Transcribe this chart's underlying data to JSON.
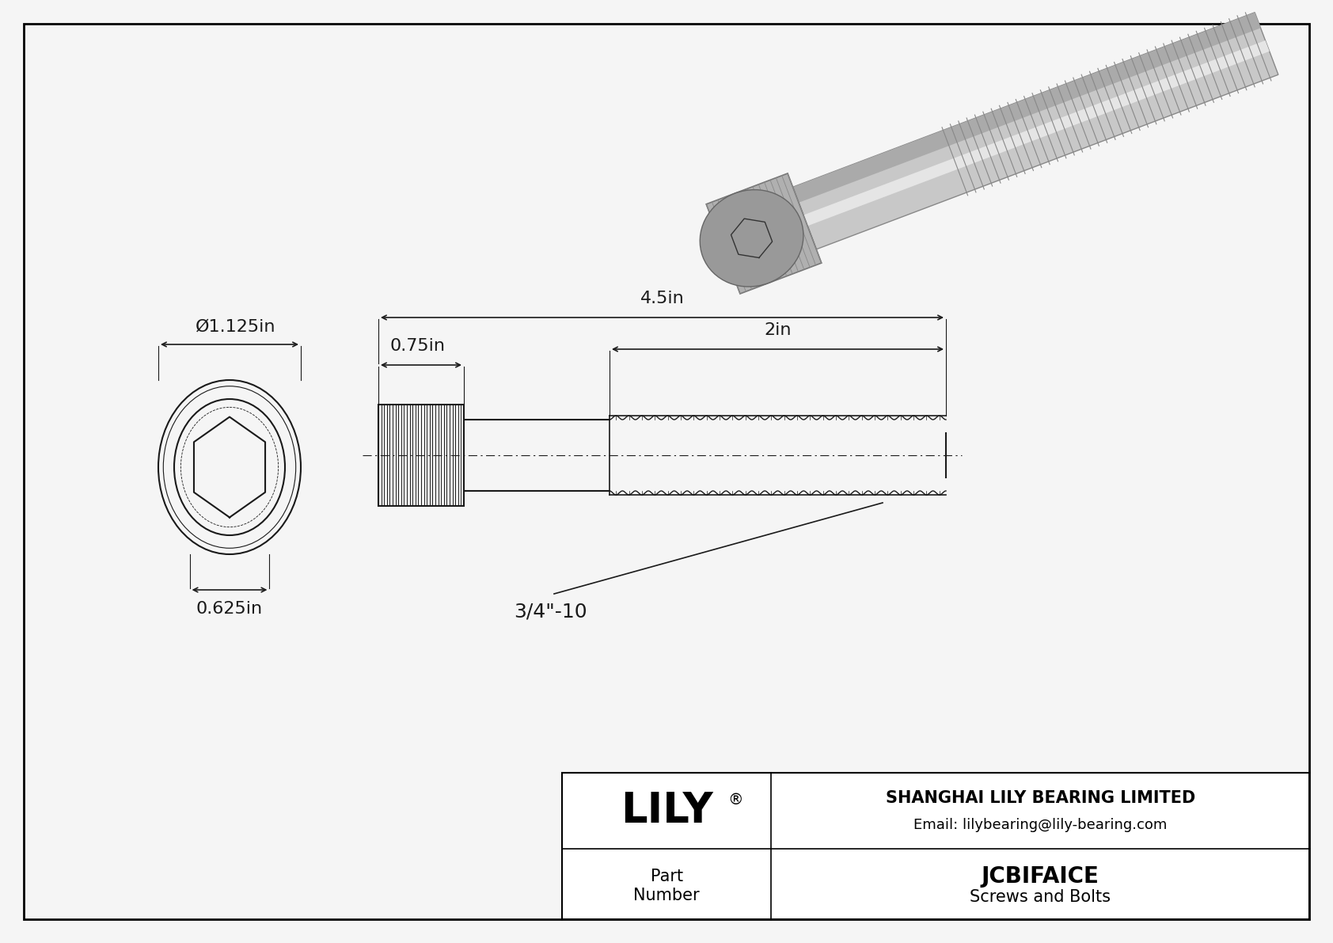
{
  "bg_color": "#f0f0f0",
  "border_color": "#000000",
  "line_color": "#1a1a1a",
  "dim_color": "#1a1a1a",
  "title": "JCBIFAICE",
  "subtitle": "Screws and Bolts",
  "company": "SHANGHAI LILY BEARING LIMITED",
  "email": "Email: lilybearing@lily-bearing.com",
  "logo_text": "LILY",
  "dim_diameter": "Ø1.125in",
  "dim_hex": "0.625in",
  "dim_head_len": "0.75in",
  "dim_total_len": "4.5in",
  "dim_thread_len": "2in",
  "thread_label": "3/4\"-10"
}
